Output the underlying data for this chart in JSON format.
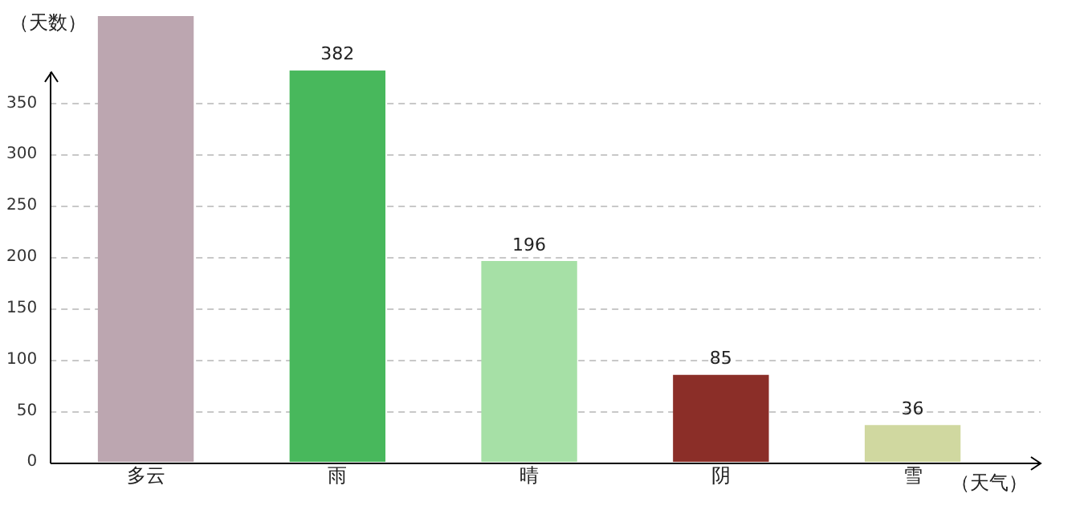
{
  "chart_data": {
    "type": "bar",
    "xlabel": "（天气）",
    "ylabel": "（天数）",
    "categories": [
      "多云",
      "雨",
      "晴",
      "阴",
      "雪"
    ],
    "values": [
      435,
      382,
      196,
      85,
      36
    ],
    "colors": [
      "#bca6b0",
      "#48b85c",
      "#a6e0a6",
      "#8b2e28",
      "#d0d8a0"
    ],
    "value_labels": [
      null,
      "382",
      "196",
      "85",
      "36"
    ],
    "ylim": [
      0,
      435
    ],
    "yticks": [
      0,
      50,
      100,
      150,
      200,
      250,
      300,
      350
    ],
    "grid": "y",
    "legend": false
  }
}
